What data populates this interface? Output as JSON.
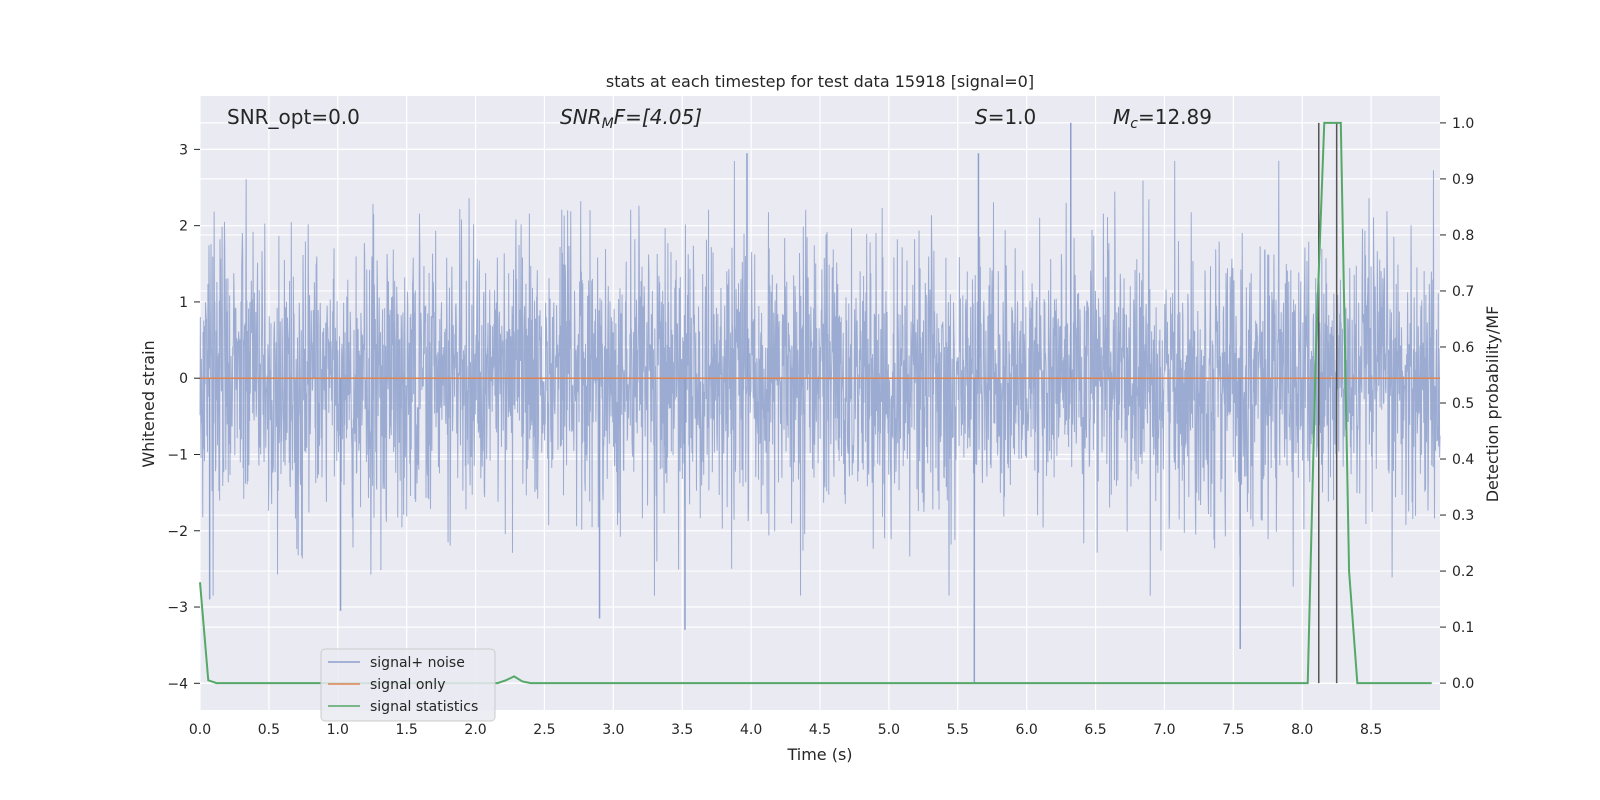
{
  "chart_data": {
    "type": "line",
    "title": "stats at each timestep for test data 15918 [signal=0]",
    "xlabel": "Time (s)",
    "ylabel": "Whitened strain",
    "ylabel_right": "Detection probability/MF",
    "xlim": [
      0.0,
      9.0
    ],
    "ylim": [
      -4.35,
      3.7
    ],
    "ylim_right": [
      -0.048,
      1.048
    ],
    "grid": true,
    "x_ticks": [
      "0.0",
      "0.5",
      "1.0",
      "1.5",
      "2.0",
      "2.5",
      "3.0",
      "3.5",
      "4.0",
      "4.5",
      "5.0",
      "5.5",
      "6.0",
      "6.5",
      "7.0",
      "7.5",
      "8.0",
      "8.5"
    ],
    "y_ticks": [
      "3",
      "2",
      "1",
      "0",
      "−1",
      "−2",
      "−3",
      "−4"
    ],
    "y_ticks_right": [
      "1.0",
      "0.9",
      "0.8",
      "0.7",
      "0.6",
      "0.5",
      "0.4",
      "0.3",
      "0.2",
      "0.1",
      "0.0"
    ],
    "annotations": {
      "snr_opt": "SNR_opt=0.0",
      "snr_mf_sym": "SNR",
      "snr_mf_sub": "M",
      "snr_mf_rest": "F=[4.05]",
      "s_sym": "S",
      "s_rest": "=1.0",
      "mc_sym": "M",
      "mc_sub": "c",
      "mc_rest": "=12.89"
    },
    "legend": {
      "placement": "lower-left",
      "entries": [
        "signal+ noise",
        "signal only",
        "signal statistics"
      ]
    },
    "colors": {
      "noise": "#8da0cb",
      "signal": "#dd8452",
      "stats": "#55a868",
      "markers": "#555555",
      "background": "#eaeaf2"
    },
    "series": [
      {
        "name": "signal+ noise",
        "axis": "left",
        "description_values": "dense noise, mostly within [-2, 2], peaks near 3.35 and -4.0",
        "amplitude_band": [
          -2.0,
          2.0
        ],
        "notable_peaks": [
          [
            6.32,
            3.35
          ],
          [
            5.62,
            -4.0
          ],
          [
            7.55,
            -3.55
          ],
          [
            2.9,
            -3.15
          ],
          [
            3.52,
            -3.3
          ],
          [
            1.02,
            -3.05
          ],
          [
            3.97,
            2.95
          ],
          [
            5.65,
            2.95
          ],
          [
            0.07,
            -2.9
          ]
        ]
      },
      {
        "name": "signal only",
        "axis": "left",
        "x": [
          0.0,
          9.0
        ],
        "values": [
          0.0,
          0.0
        ]
      },
      {
        "name": "signal statistics",
        "axis": "right",
        "x": [
          0.0,
          0.06,
          0.12,
          0.18,
          2.1,
          2.16,
          2.22,
          2.28,
          2.34,
          2.4,
          8.04,
          8.1,
          8.16,
          8.22,
          8.28,
          8.34,
          8.4,
          8.46,
          8.94
        ],
        "values": [
          0.18,
          0.005,
          0.0,
          0.0,
          0.0,
          0.0,
          0.005,
          0.012,
          0.003,
          0.0,
          0.0,
          0.6,
          1.0,
          1.0,
          1.0,
          0.2,
          0.0,
          0.0,
          0.0
        ]
      }
    ],
    "vertical_markers_x": [
      8.12,
      8.25
    ]
  }
}
